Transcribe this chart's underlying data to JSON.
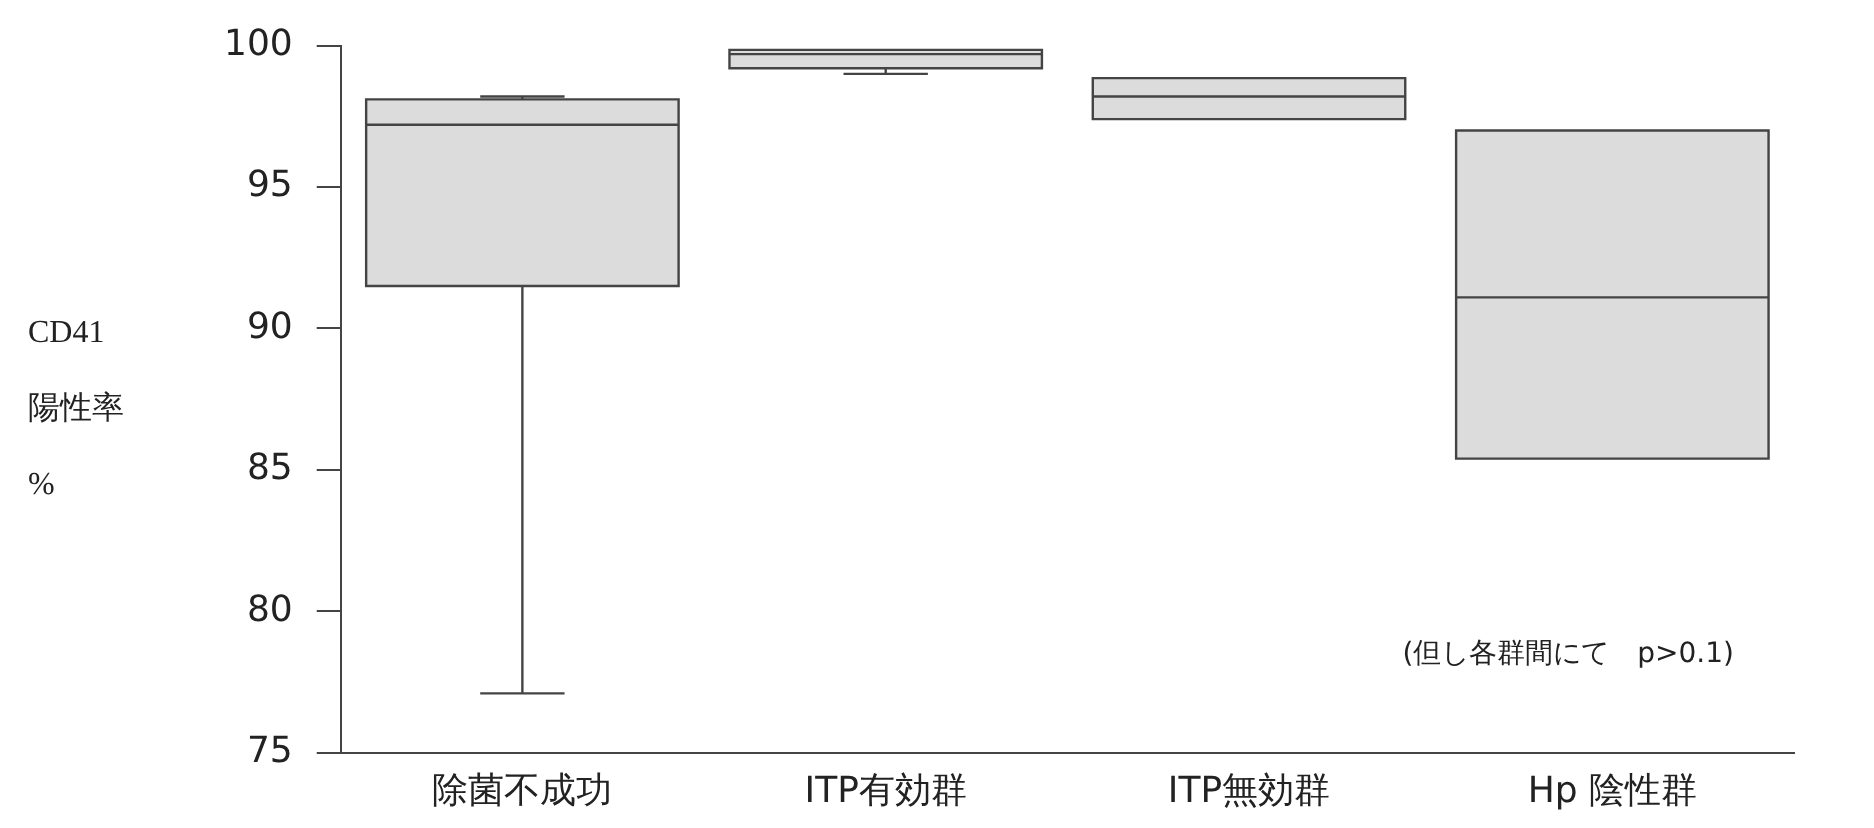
{
  "chart_data": {
    "type": "box",
    "ylabel": "CD41\n陽性率\n%",
    "categories": [
      "除菌不成功",
      "ITP有効群",
      "ITP無効群",
      "Hp 陰性群"
    ],
    "boxes": [
      {
        "low": 77.1,
        "q1": 91.5,
        "median": 97.2,
        "q3": 98.1,
        "high": 98.2
      },
      {
        "low": 99.0,
        "q1": 99.2,
        "median": 99.7,
        "q3": 99.85,
        "high": 99.85
      },
      {
        "low": 97.4,
        "q1": 97.4,
        "median": 98.2,
        "q3": 98.85,
        "high": 98.85
      },
      {
        "low": 85.4,
        "q1": 85.4,
        "median": 91.1,
        "q3": 97.0,
        "high": 97.0
      }
    ],
    "color": "#dcdcdc",
    "ylim": [
      75,
      100
    ],
    "yticks": [
      75,
      80,
      85,
      90,
      95,
      100
    ],
    "grid": false,
    "legend": false,
    "annotations": [
      "(但し各群間にて　p>0.1)"
    ]
  }
}
